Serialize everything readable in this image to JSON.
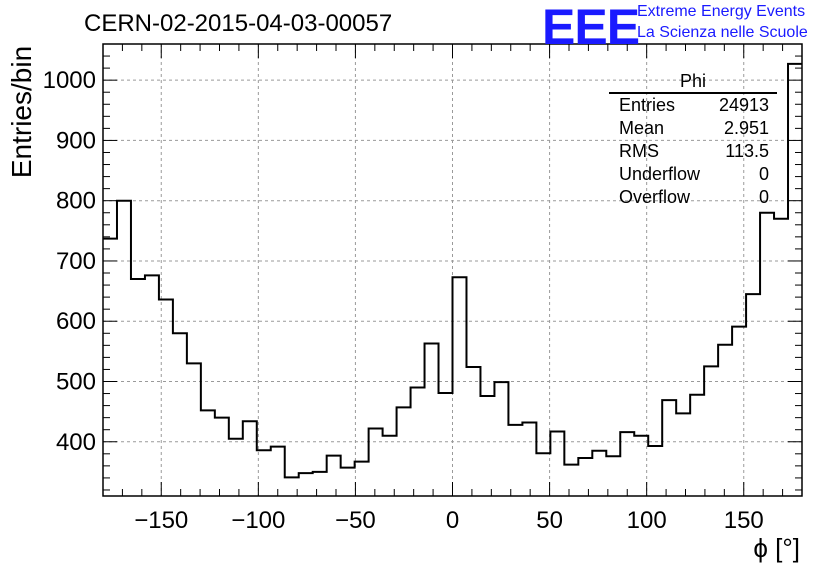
{
  "header": {
    "run_title": "CERN-02-2015-04-03-00057",
    "logo_text": "EEE",
    "logo_line1": "Extreme Energy Events",
    "logo_line2": "La Scienza nelle Scuole",
    "logo_color": "#1a1aff"
  },
  "stats_box": {
    "title": "Phi",
    "rows": [
      {
        "label": "Entries",
        "value": "24913"
      },
      {
        "label": "Mean",
        "value": "2.951"
      },
      {
        "label": "RMS",
        "value": "113.5"
      },
      {
        "label": "Underflow",
        "value": "0"
      },
      {
        "label": "Overflow",
        "value": "0"
      }
    ]
  },
  "chart_data": {
    "type": "bar",
    "histogram": true,
    "xlabel": "ϕ [°]",
    "ylabel": "Entries/bin",
    "xlim": [
      -180,
      180
    ],
    "ylim": [
      310,
      1060
    ],
    "bin_width": 7.2,
    "x_ticks": [
      -150,
      -100,
      -50,
      0,
      50,
      100,
      150
    ],
    "x_tick_labels": [
      "−150",
      "−100",
      "−50",
      "0",
      "50",
      "100",
      "150"
    ],
    "y_ticks": [
      400,
      500,
      600,
      700,
      800,
      900,
      1000
    ],
    "y_tick_labels": [
      "400",
      "500",
      "600",
      "700",
      "800",
      "900",
      "1000"
    ],
    "grid": true,
    "values": [
      737,
      800,
      670,
      676,
      636,
      580,
      530,
      452,
      440,
      405,
      434,
      386,
      392,
      341,
      348,
      350,
      377,
      357,
      367,
      422,
      410,
      457,
      490,
      563,
      481,
      673,
      524,
      476,
      499,
      428,
      432,
      381,
      417,
      362,
      373,
      385,
      376,
      416,
      410,
      393,
      469,
      447,
      478,
      525,
      561,
      591,
      645,
      780,
      770,
      1027
    ],
    "line_color": "#000000",
    "grid_color": "#9a9a9a"
  }
}
